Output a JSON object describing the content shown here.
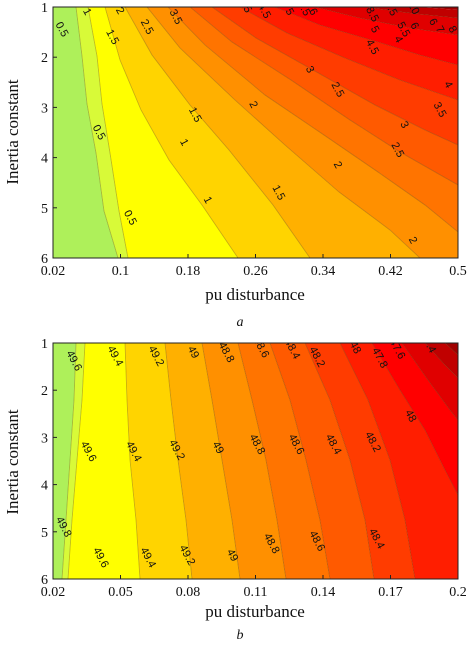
{
  "chart_data": [
    {
      "type": "contour",
      "panel": "a",
      "caption": "a",
      "xlabel": "pu disturbance",
      "ylabel": "Inertia constant",
      "x_ticks": [
        "0.02",
        "0.1",
        "0.18",
        "0.26",
        "0.34",
        "0.42",
        "0.5"
      ],
      "y_ticks": [
        "1",
        "2",
        "3",
        "4",
        "5",
        "6"
      ],
      "xlim": [
        0.02,
        0.5
      ],
      "ylim": [
        6,
        1
      ],
      "y_inverted": true,
      "grid": false,
      "levels": [
        0.5,
        1,
        1.5,
        2,
        2.5,
        3,
        3.5,
        4,
        4.5,
        5,
        5.5,
        6,
        6.5,
        7,
        7.5,
        8,
        8.5,
        9,
        9.5,
        10
      ],
      "colormap": "autumn",
      "colors": {
        "low": "#aef05a",
        "mid": "#ffff00",
        "high": "#ff0000",
        "peak": "#a00000"
      },
      "contour_labels": [
        {
          "text": "0.5",
          "x": 0.03,
          "y": 1.45
        },
        {
          "text": "1",
          "x": 0.06,
          "y": 1.1
        },
        {
          "text": "0.5",
          "x": 0.074,
          "y": 3.5
        },
        {
          "text": "0.5",
          "x": 0.111,
          "y": 5.2
        },
        {
          "text": "1.5",
          "x": 0.09,
          "y": 1.6
        },
        {
          "text": "1",
          "x": 0.175,
          "y": 3.7
        },
        {
          "text": "1",
          "x": 0.203,
          "y": 4.85
        },
        {
          "text": "2",
          "x": 0.099,
          "y": 1.08
        },
        {
          "text": "2.5",
          "x": 0.131,
          "y": 1.4
        },
        {
          "text": "1.5",
          "x": 0.188,
          "y": 3.15
        },
        {
          "text": "3.5",
          "x": 0.165,
          "y": 1.2
        },
        {
          "text": "2",
          "x": 0.257,
          "y": 2.95
        },
        {
          "text": "1.5",
          "x": 0.287,
          "y": 4.7
        },
        {
          "text": "3",
          "x": 0.324,
          "y": 2.25
        },
        {
          "text": "2.5",
          "x": 0.357,
          "y": 2.65
        },
        {
          "text": "2",
          "x": 0.357,
          "y": 4.15
        },
        {
          "text": "2.5",
          "x": 0.428,
          "y": 3.85
        },
        {
          "text": "3",
          "x": 0.436,
          "y": 3.35
        },
        {
          "text": "3.5",
          "x": 0.478,
          "y": 3.05
        },
        {
          "text": "4",
          "x": 0.488,
          "y": 2.55
        },
        {
          "text": "2",
          "x": 0.446,
          "y": 5.65
        },
        {
          "text": "4.5",
          "x": 0.398,
          "y": 1.8
        },
        {
          "text": "4",
          "x": 0.429,
          "y": 1.65
        },
        {
          "text": "5",
          "x": 0.401,
          "y": 1.45
        },
        {
          "text": "5.5",
          "x": 0.435,
          "y": 1.45
        },
        {
          "text": "6",
          "x": 0.448,
          "y": 1.38
        },
        {
          "text": "6",
          "x": 0.47,
          "y": 1.3
        },
        {
          "text": "7",
          "x": 0.478,
          "y": 1.45
        },
        {
          "text": "8",
          "x": 0.493,
          "y": 1.45
        },
        {
          "text": "6.5",
          "x": 0.317,
          "y": 1.03
        },
        {
          "text": "6",
          "x": 0.328,
          "y": 1.1
        },
        {
          "text": "5",
          "x": 0.25,
          "y": 1.05
        },
        {
          "text": "4.5",
          "x": 0.27,
          "y": 1.08
        },
        {
          "text": "5",
          "x": 0.3,
          "y": 1.1
        },
        {
          "text": "8.5",
          "x": 0.398,
          "y": 1.15
        },
        {
          "text": "9.5",
          "x": 0.42,
          "y": 1.03
        },
        {
          "text": "10",
          "x": 0.447,
          "y": 1.03
        }
      ]
    },
    {
      "type": "contour",
      "panel": "b",
      "caption": "b",
      "xlabel": "pu disturbance",
      "ylabel": "Inertia constant",
      "x_ticks": [
        "0.02",
        "0.05",
        "0.08",
        "0.11",
        "0.14",
        "0.17",
        "0.2"
      ],
      "y_ticks": [
        "1",
        "2",
        "3",
        "4",
        "5",
        "6"
      ],
      "xlim": [
        0.02,
        0.2
      ],
      "ylim": [
        6,
        1
      ],
      "y_inverted": true,
      "grid": false,
      "levels": [
        49.8,
        49.6,
        49.4,
        49.2,
        49,
        48.8,
        48.6,
        48.4,
        48.2,
        48,
        47.8,
        47.6,
        47.4
      ],
      "colormap": "autumn",
      "colors": {
        "low": "#aef05a",
        "mid": "#ffff00",
        "high": "#ff0000",
        "peak": "#a00000"
      },
      "contour_labels": [
        {
          "text": "49.6",
          "x": 0.0292,
          "y": 1.38
        },
        {
          "text": "49.4",
          "x": 0.0475,
          "y": 1.28
        },
        {
          "text": "49.2",
          "x": 0.0657,
          "y": 1.28
        },
        {
          "text": "49",
          "x": 0.0822,
          "y": 1.2
        },
        {
          "text": "48.8",
          "x": 0.0969,
          "y": 1.2
        },
        {
          "text": "48.6",
          "x": 0.1124,
          "y": 1.1
        },
        {
          "text": "48.4",
          "x": 0.1262,
          "y": 1.13
        },
        {
          "text": "48.2",
          "x": 0.1372,
          "y": 1.3
        },
        {
          "text": "48",
          "x": 0.1542,
          "y": 1.1
        },
        {
          "text": "47.8",
          "x": 0.1651,
          "y": 1.32
        },
        {
          "text": "47.6",
          "x": 0.1729,
          "y": 1.13
        },
        {
          "text": "47.4",
          "x": 0.1866,
          "y": 1.0
        },
        {
          "text": "49.6",
          "x": 0.0356,
          "y": 3.3
        },
        {
          "text": "49.4",
          "x": 0.0557,
          "y": 3.3
        },
        {
          "text": "49.2",
          "x": 0.0749,
          "y": 3.27
        },
        {
          "text": "49",
          "x": 0.0932,
          "y": 3.22
        },
        {
          "text": "48.8",
          "x": 0.1106,
          "y": 3.15
        },
        {
          "text": "48.6",
          "x": 0.128,
          "y": 3.15
        },
        {
          "text": "48.4",
          "x": 0.1445,
          "y": 3.15
        },
        {
          "text": "48.2",
          "x": 0.162,
          "y": 3.1
        },
        {
          "text": "48",
          "x": 0.1788,
          "y": 2.55
        },
        {
          "text": "49.8",
          "x": 0.0246,
          "y": 4.9
        },
        {
          "text": "49.6",
          "x": 0.0411,
          "y": 5.55
        },
        {
          "text": "49.4",
          "x": 0.0621,
          "y": 5.55
        },
        {
          "text": "49.2",
          "x": 0.0795,
          "y": 5.5
        },
        {
          "text": "49",
          "x": 0.0996,
          "y": 5.5
        },
        {
          "text": "48.8",
          "x": 0.117,
          "y": 5.25
        },
        {
          "text": "48.6",
          "x": 0.1372,
          "y": 5.2
        },
        {
          "text": "48.4",
          "x": 0.1637,
          "y": 5.15
        }
      ]
    }
  ]
}
